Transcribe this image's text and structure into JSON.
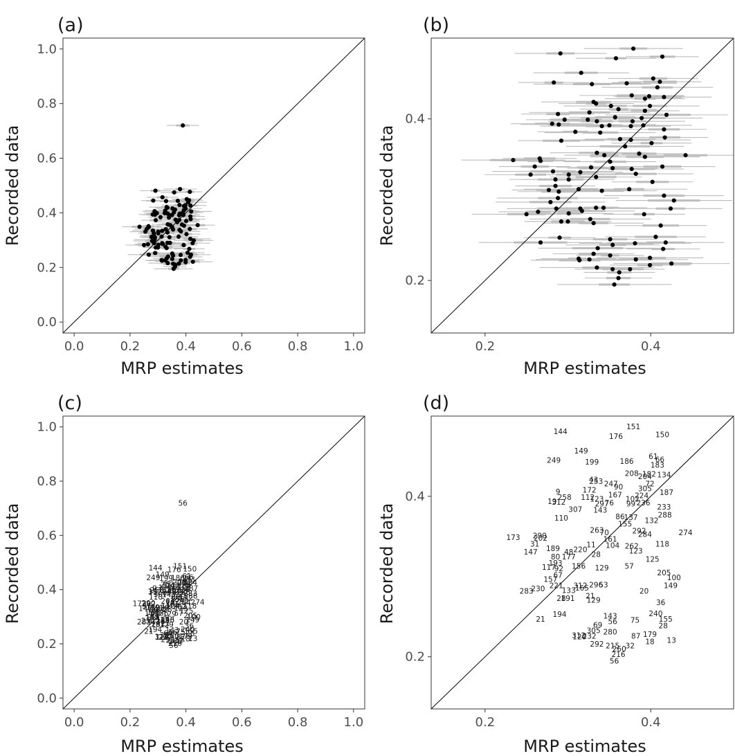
{
  "chart_data": [
    {
      "panel": "(a)",
      "type": "scatter",
      "xlabel": "MRP estimates",
      "ylabel": "Recorded data",
      "xlim": [
        -0.04,
        1.04
      ],
      "ylim": [
        -0.04,
        1.04
      ],
      "xticks": [
        "0.0",
        "0.2",
        "0.4",
        "0.6",
        "0.8",
        "1.0"
      ],
      "yticks": [
        "0.0",
        "0.2",
        "0.4",
        "0.6",
        "0.8",
        "1.0"
      ],
      "reference_line": "y = x",
      "markers": "points",
      "error_bars": true,
      "grid": false
    },
    {
      "panel": "(b)",
      "type": "scatter",
      "xlabel": "MRP estimates",
      "ylabel": "Recorded data",
      "xlim": [
        0.135,
        0.5
      ],
      "ylim": [
        0.135,
        0.5
      ],
      "xticks": [
        "0.2",
        "0.4"
      ],
      "yticks": [
        "0.2",
        "0.4"
      ],
      "reference_line": "y = x",
      "markers": "points",
      "error_bars": true,
      "grid": false
    },
    {
      "panel": "(c)",
      "type": "scatter",
      "xlabel": "MRP estimates",
      "ylabel": "Recorded data",
      "xlim": [
        -0.04,
        1.04
      ],
      "ylim": [
        -0.04,
        1.04
      ],
      "xticks": [
        "0.0",
        "0.2",
        "0.4",
        "0.6",
        "0.8",
        "1.0"
      ],
      "yticks": [
        "0.0",
        "0.2",
        "0.4",
        "0.6",
        "0.8",
        "1.0"
      ],
      "reference_line": "y = x",
      "markers": "text labels",
      "error_bars": false,
      "grid": false
    },
    {
      "panel": "(d)",
      "type": "scatter",
      "xlabel": "MRP estimates",
      "ylabel": "Recorded data",
      "xlim": [
        0.135,
        0.5
      ],
      "ylim": [
        0.135,
        0.5
      ],
      "xticks": [
        "0.2",
        "0.4"
      ],
      "yticks": [
        "0.2",
        "0.4"
      ],
      "reference_line": "y = x",
      "markers": "text labels",
      "error_bars": false,
      "grid": false
    }
  ],
  "points": [
    {
      "id": "56",
      "x": 0.389,
      "y": 0.72
    },
    {
      "id": "151",
      "x": 0.379,
      "y": 0.487
    },
    {
      "id": "150",
      "x": 0.414,
      "y": 0.477
    },
    {
      "id": "176",
      "x": 0.358,
      "y": 0.475
    },
    {
      "id": "144",
      "x": 0.291,
      "y": 0.481
    },
    {
      "id": "149",
      "x": 0.316,
      "y": 0.457
    },
    {
      "id": "249",
      "x": 0.283,
      "y": 0.445
    },
    {
      "id": "199",
      "x": 0.329,
      "y": 0.443
    },
    {
      "id": "186",
      "x": 0.371,
      "y": 0.444
    },
    {
      "id": "61",
      "x": 0.403,
      "y": 0.45
    },
    {
      "id": "66",
      "x": 0.411,
      "y": 0.446
    },
    {
      "id": "183",
      "x": 0.408,
      "y": 0.439
    },
    {
      "id": "208",
      "x": 0.377,
      "y": 0.429
    },
    {
      "id": "182",
      "x": 0.398,
      "y": 0.428
    },
    {
      "id": "134",
      "x": 0.416,
      "y": 0.427
    },
    {
      "id": "204",
      "x": 0.393,
      "y": 0.425
    },
    {
      "id": "43",
      "x": 0.331,
      "y": 0.421
    },
    {
      "id": "253",
      "x": 0.334,
      "y": 0.419
    },
    {
      "id": "72",
      "x": 0.399,
      "y": 0.416
    },
    {
      "id": "247",
      "x": 0.352,
      "y": 0.416
    },
    {
      "id": "90",
      "x": 0.361,
      "y": 0.412
    },
    {
      "id": "305",
      "x": 0.393,
      "y": 0.41
    },
    {
      "id": "172",
      "x": 0.326,
      "y": 0.408
    },
    {
      "id": "187",
      "x": 0.419,
      "y": 0.405
    },
    {
      "id": "9",
      "x": 0.288,
      "y": 0.406
    },
    {
      "id": "167",
      "x": 0.357,
      "y": 0.402
    },
    {
      "id": "224",
      "x": 0.389,
      "y": 0.401
    },
    {
      "id": "258",
      "x": 0.296,
      "y": 0.399
    },
    {
      "id": "112",
      "x": 0.324,
      "y": 0.399
    },
    {
      "id": "123",
      "x": 0.335,
      "y": 0.397
    },
    {
      "id": "102",
      "x": 0.378,
      "y": 0.397
    },
    {
      "id": "19",
      "x": 0.281,
      "y": 0.394
    },
    {
      "id": "312",
      "x": 0.289,
      "y": 0.393
    },
    {
      "id": "297",
      "x": 0.341,
      "y": 0.391
    },
    {
      "id": "76",
      "x": 0.35,
      "y": 0.392
    },
    {
      "id": "99",
      "x": 0.376,
      "y": 0.391
    },
    {
      "id": "236",
      "x": 0.391,
      "y": 0.392
    },
    {
      "id": "233",
      "x": 0.416,
      "y": 0.387
    },
    {
      "id": "307",
      "x": 0.309,
      "y": 0.384
    },
    {
      "id": "143",
      "x": 0.339,
      "y": 0.383
    },
    {
      "id": "288",
      "x": 0.417,
      "y": 0.377
    },
    {
      "id": "110",
      "x": 0.292,
      "y": 0.373
    },
    {
      "id": "86",
      "x": 0.363,
      "y": 0.375
    },
    {
      "id": "137",
      "x": 0.376,
      "y": 0.374
    },
    {
      "id": "132",
      "x": 0.401,
      "y": 0.37
    },
    {
      "id": "155",
      "x": 0.369,
      "y": 0.366
    },
    {
      "id": "263",
      "x": 0.335,
      "y": 0.358
    },
    {
      "id": "70",
      "x": 0.344,
      "y": 0.355
    },
    {
      "id": "274",
      "x": 0.442,
      "y": 0.355
    },
    {
      "id": "292",
      "x": 0.386,
      "y": 0.357
    },
    {
      "id": "284",
      "x": 0.393,
      "y": 0.353
    },
    {
      "id": "173",
      "x": 0.234,
      "y": 0.349
    },
    {
      "id": "290",
      "x": 0.266,
      "y": 0.351
    },
    {
      "id": "202",
      "x": 0.267,
      "y": 0.348
    },
    {
      "id": "161",
      "x": 0.351,
      "y": 0.347
    },
    {
      "id": "31",
      "x": 0.26,
      "y": 0.341
    },
    {
      "id": "11",
      "x": 0.328,
      "y": 0.34
    },
    {
      "id": "104",
      "x": 0.354,
      "y": 0.339
    },
    {
      "id": "118",
      "x": 0.414,
      "y": 0.341
    },
    {
      "id": "262",
      "x": 0.377,
      "y": 0.338
    },
    {
      "id": "189",
      "x": 0.282,
      "y": 0.335
    },
    {
      "id": "220",
      "x": 0.315,
      "y": 0.334
    },
    {
      "id": "147",
      "x": 0.255,
      "y": 0.331
    },
    {
      "id": "48",
      "x": 0.301,
      "y": 0.331
    },
    {
      "id": "28",
      "x": 0.334,
      "y": 0.328
    },
    {
      "id": "123",
      "x": 0.382,
      "y": 0.332
    },
    {
      "id": "80",
      "x": 0.285,
      "y": 0.325
    },
    {
      "id": "177",
      "x": 0.301,
      "y": 0.325
    },
    {
      "id": "125",
      "x": 0.402,
      "y": 0.322
    },
    {
      "id": "193",
      "x": 0.285,
      "y": 0.317
    },
    {
      "id": "156",
      "x": 0.313,
      "y": 0.313
    },
    {
      "id": "117",
      "x": 0.277,
      "y": 0.312
    },
    {
      "id": "92",
      "x": 0.289,
      "y": 0.31
    },
    {
      "id": "129",
      "x": 0.341,
      "y": 0.311
    },
    {
      "id": "57",
      "x": 0.374,
      "y": 0.313
    },
    {
      "id": "67",
      "x": 0.288,
      "y": 0.302
    },
    {
      "id": "205",
      "x": 0.416,
      "y": 0.305
    },
    {
      "id": "100",
      "x": 0.428,
      "y": 0.299
    },
    {
      "id": "157",
      "x": 0.279,
      "y": 0.297
    },
    {
      "id": "149",
      "x": 0.424,
      "y": 0.289
    },
    {
      "id": "221",
      "x": 0.286,
      "y": 0.289
    },
    {
      "id": "312",
      "x": 0.315,
      "y": 0.289
    },
    {
      "id": "296",
      "x": 0.334,
      "y": 0.29
    },
    {
      "id": "53",
      "x": 0.343,
      "y": 0.29
    },
    {
      "id": "230",
      "x": 0.264,
      "y": 0.285
    },
    {
      "id": "133",
      "x": 0.301,
      "y": 0.283
    },
    {
      "id": "165",
      "x": 0.317,
      "y": 0.286
    },
    {
      "id": "283",
      "x": 0.25,
      "y": 0.282
    },
    {
      "id": "20",
      "x": 0.392,
      "y": 0.282
    },
    {
      "id": "21",
      "x": 0.327,
      "y": 0.276
    },
    {
      "id": "28",
      "x": 0.292,
      "y": 0.273
    },
    {
      "id": "191",
      "x": 0.3,
      "y": 0.273
    },
    {
      "id": "129",
      "x": 0.331,
      "y": 0.271
    },
    {
      "id": "36",
      "x": 0.412,
      "y": 0.268
    },
    {
      "id": "194",
      "x": 0.29,
      "y": 0.253
    },
    {
      "id": "21",
      "x": 0.267,
      "y": 0.247
    },
    {
      "id": "143",
      "x": 0.351,
      "y": 0.251
    },
    {
      "id": "155",
      "x": 0.418,
      "y": 0.247
    },
    {
      "id": "240",
      "x": 0.406,
      "y": 0.254
    },
    {
      "id": "56",
      "x": 0.354,
      "y": 0.244
    },
    {
      "id": "28",
      "x": 0.415,
      "y": 0.239
    },
    {
      "id": "75",
      "x": 0.381,
      "y": 0.246
    },
    {
      "id": "69",
      "x": 0.336,
      "y": 0.24
    },
    {
      "id": "305",
      "x": 0.331,
      "y": 0.233
    },
    {
      "id": "280",
      "x": 0.351,
      "y": 0.231
    },
    {
      "id": "312",
      "x": 0.313,
      "y": 0.227
    },
    {
      "id": "232",
      "x": 0.326,
      "y": 0.226
    },
    {
      "id": "179",
      "x": 0.399,
      "y": 0.228
    },
    {
      "id": "87",
      "x": 0.382,
      "y": 0.226
    },
    {
      "id": "13",
      "x": 0.425,
      "y": 0.221
    },
    {
      "id": "18",
      "x": 0.399,
      "y": 0.219
    },
    {
      "id": "292",
      "x": 0.335,
      "y": 0.216
    },
    {
      "id": "215",
      "x": 0.354,
      "y": 0.214
    },
    {
      "id": "32",
      "x": 0.375,
      "y": 0.214
    },
    {
      "id": "260",
      "x": 0.362,
      "y": 0.21
    },
    {
      "id": "216",
      "x": 0.361,
      "y": 0.203
    },
    {
      "id": "120",
      "x": 0.314,
      "y": 0.225
    },
    {
      "id": "56",
      "x": 0.356,
      "y": 0.195
    }
  ],
  "text": {
    "panel_a": "(a)",
    "panel_b": "(b)",
    "panel_c": "(c)",
    "panel_d": "(d)",
    "xlabel": "MRP estimates",
    "ylabel": "Recorded data"
  },
  "colors": {
    "point": "#000000",
    "error_bar": "#bdbdbd",
    "axis": "#333333",
    "tick_text": "#4d4d4d",
    "title_text": "#1a1a1a"
  }
}
